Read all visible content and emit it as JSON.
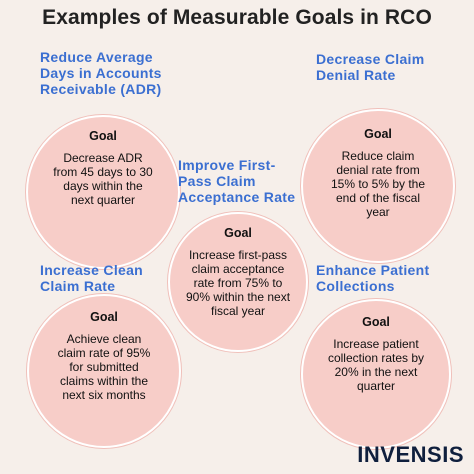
{
  "title": "Examples of Measurable Goals in RCO",
  "goal_label": "Goal",
  "accent_color": "#3b6fd1",
  "circle_color": "#f7cdc8",
  "items": [
    {
      "heading": "Reduce Average Days in Accounts Receivable (ADR)",
      "goal_text": "Decrease ADR from 45 days to 30 days within the next quarter"
    },
    {
      "heading": "Decrease Claim Denial Rate",
      "goal_text": "Reduce claim denial rate from 15% to 5% by the end of the fiscal year"
    },
    {
      "heading": "Improve First-Pass Claim Acceptance Rate",
      "goal_text": "Increase first-pass claim acceptance rate from 75% to 90% within the next fiscal year"
    },
    {
      "heading": "Increase Clean Claim Rate",
      "goal_text": "Achieve clean claim rate of 95% for submitted claims within the next six months"
    },
    {
      "heading": "Enhance Patient Collections",
      "goal_text": "Increase patient collection rates by 20% in the next quarter"
    }
  ],
  "logo": "INVENSIS"
}
